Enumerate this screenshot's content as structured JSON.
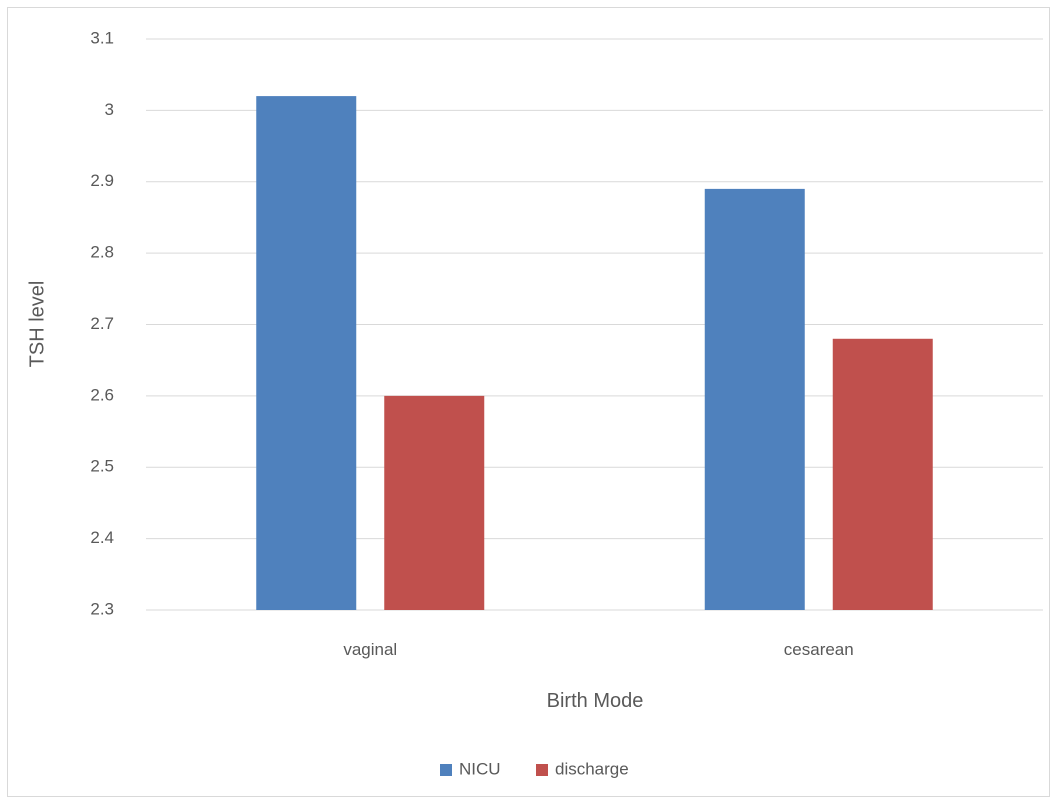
{
  "chart_data": {
    "type": "bar",
    "title": "",
    "xlabel": "Birth Mode",
    "ylabel": "TSH  level",
    "categories": [
      "vaginal",
      "cesarean"
    ],
    "series": [
      {
        "name": "NICU",
        "values": [
          3.02,
          2.89
        ],
        "color": "#4f81bd"
      },
      {
        "name": "discharge",
        "values": [
          2.6,
          2.68
        ],
        "color": "#c0504d"
      }
    ],
    "ylim": [
      2.3,
      3.1
    ],
    "yticks": [
      "2.3",
      "2.4",
      "2.5",
      "2.6",
      "2.7",
      "2.8",
      "2.9",
      "3",
      "3.1"
    ],
    "grid": true,
    "gridline_color": "#d9d9d9",
    "legend_position": "bottom"
  }
}
